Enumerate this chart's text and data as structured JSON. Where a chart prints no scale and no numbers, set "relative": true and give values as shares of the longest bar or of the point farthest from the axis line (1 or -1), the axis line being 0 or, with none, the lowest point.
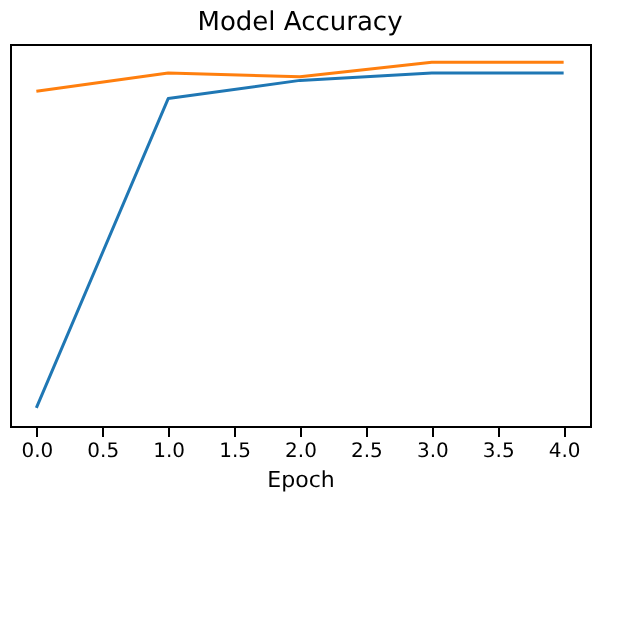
{
  "chart_data": {
    "type": "line",
    "title": "Model Accuracy",
    "xlabel": "Epoch",
    "relative": true,
    "x": [
      0,
      1,
      2,
      3,
      4
    ],
    "series": [
      {
        "color": "#1f77b4",
        "values": [
          0.05,
          0.9,
          0.95,
          0.97,
          0.97
        ]
      },
      {
        "color": "#ff7f0e",
        "values": [
          0.92,
          0.97,
          0.96,
          1.0,
          1.0
        ]
      }
    ],
    "xlim": [
      -0.2,
      4.2
    ],
    "xticks": [
      {
        "value": 0,
        "label": "0.0"
      },
      0.5,
      {
        "value": 1,
        "label": "1.0"
      },
      1.5,
      {
        "value": 2,
        "label": "2.0"
      },
      2.5,
      {
        "value": 3,
        "label": "3.0"
      },
      3.5,
      {
        "value": 4,
        "label": "4.0"
      }
    ],
    "grid": false
  }
}
